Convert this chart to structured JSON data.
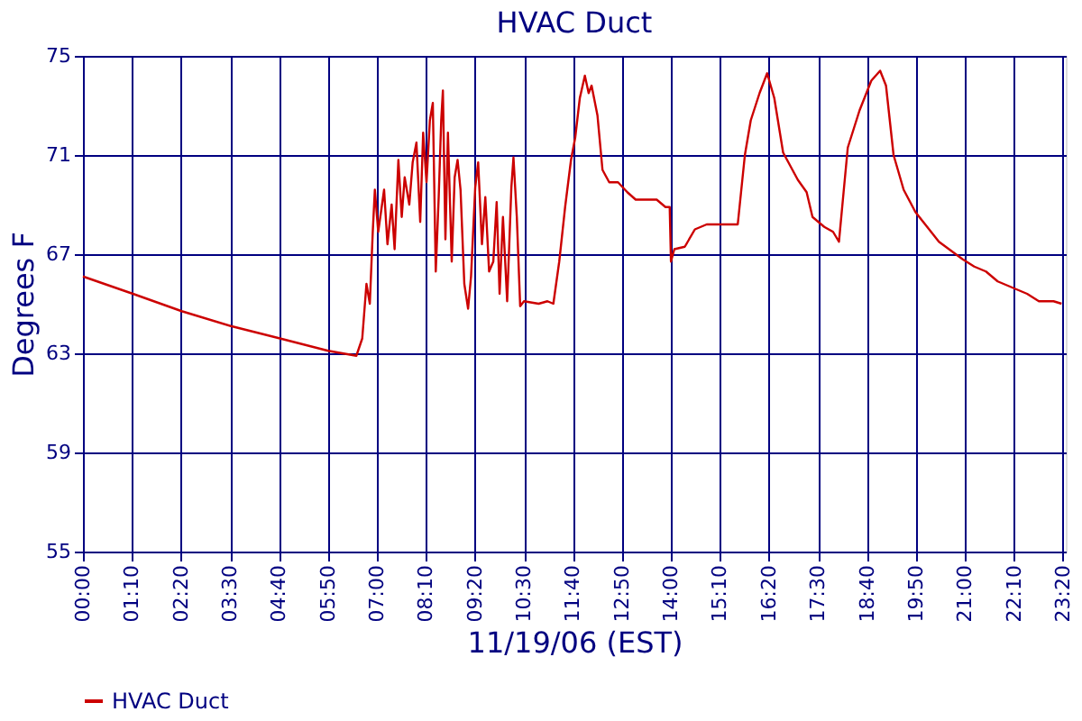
{
  "chart_data": {
    "type": "line",
    "title": "HVAC Duct",
    "xlabel": "11/19/06 (EST)",
    "ylabel": "Degrees F",
    "xlim": [
      0,
      23.4
    ],
    "ylim": [
      55,
      75
    ],
    "yticks": [
      55,
      59,
      63,
      67,
      71,
      75
    ],
    "xticks": [
      {
        "value": 0,
        "label": "00:00"
      },
      {
        "value": 1.16667,
        "label": "01:10"
      },
      {
        "value": 2.33333,
        "label": "02:20"
      },
      {
        "value": 3.5,
        "label": "03:30"
      },
      {
        "value": 4.66667,
        "label": "04:40"
      },
      {
        "value": 5.83333,
        "label": "05:50"
      },
      {
        "value": 7,
        "label": "07:00"
      },
      {
        "value": 8.16667,
        "label": "08:10"
      },
      {
        "value": 9.33333,
        "label": "09:20"
      },
      {
        "value": 10.5,
        "label": "10:30"
      },
      {
        "value": 11.66667,
        "label": "11:40"
      },
      {
        "value": 12.83333,
        "label": "12:50"
      },
      {
        "value": 14,
        "label": "14:00"
      },
      {
        "value": 15.16667,
        "label": "15:10"
      },
      {
        "value": 16.33333,
        "label": "16:20"
      },
      {
        "value": 17.5,
        "label": "17:30"
      },
      {
        "value": 18.66667,
        "label": "18:40"
      },
      {
        "value": 19.83333,
        "label": "19:50"
      },
      {
        "value": 21,
        "label": "21:00"
      },
      {
        "value": 22.16667,
        "label": "22:10"
      },
      {
        "value": 23.33333,
        "label": "23:20"
      }
    ],
    "grid": true,
    "legend": "bottom",
    "line_style": "solid",
    "marker": "none",
    "series": [
      {
        "name": "HVAC Duct",
        "color": "#cc0000",
        "x": [
          0,
          1.19,
          2.35,
          3.52,
          4.69,
          5.84,
          6.51,
          6.65,
          6.75,
          6.83,
          6.9,
          6.95,
          7.03,
          7.17,
          7.25,
          7.35,
          7.42,
          7.51,
          7.59,
          7.66,
          7.77,
          7.85,
          7.94,
          8.03,
          8.1,
          8.18,
          8.26,
          8.33,
          8.4,
          8.47,
          8.53,
          8.57,
          8.63,
          8.69,
          8.78,
          8.85,
          8.92,
          8.99,
          9.08,
          9.17,
          9.24,
          9.34,
          9.41,
          9.5,
          9.58,
          9.67,
          9.77,
          9.85,
          9.92,
          10.0,
          10.1,
          10.2,
          10.25,
          10.33,
          10.41,
          10.5,
          10.85,
          11.06,
          11.2,
          11.34,
          11.48,
          11.62,
          11.72,
          11.83,
          11.95,
          12.04,
          12.11,
          12.25,
          12.37,
          12.53,
          12.74,
          12.96,
          13.16,
          13.66,
          13.87,
          13.97,
          14.0,
          14.08,
          14.33,
          14.57,
          14.85,
          15.59,
          15.76,
          15.9,
          16.11,
          16.29,
          16.46,
          16.67,
          17.02,
          17.23,
          17.37,
          17.65,
          17.86,
          18.0,
          18.11,
          18.21,
          18.49,
          18.77,
          18.98,
          19.12,
          19.3,
          19.54,
          19.82,
          20.1,
          20.38,
          20.94,
          21.22,
          21.5,
          21.78,
          22.06,
          22.48,
          22.76,
          23.11,
          23.3
        ],
        "values": [
          66.1,
          65.4,
          64.7,
          64.1,
          63.6,
          63.1,
          62.9,
          63.6,
          65.8,
          65.0,
          67.9,
          69.6,
          67.9,
          69.6,
          67.4,
          69.0,
          67.2,
          70.8,
          68.5,
          70.1,
          69.0,
          70.7,
          71.5,
          68.3,
          71.9,
          69.9,
          72.4,
          73.1,
          66.3,
          69.3,
          72.4,
          73.6,
          67.6,
          71.9,
          66.7,
          70.1,
          70.8,
          69.6,
          65.8,
          64.8,
          66.1,
          69.7,
          70.7,
          67.4,
          69.3,
          66.3,
          66.7,
          69.1,
          65.4,
          68.5,
          65.1,
          69.7,
          70.9,
          68.5,
          64.9,
          65.1,
          65.0,
          65.1,
          65.0,
          66.7,
          68.9,
          70.8,
          71.7,
          73.3,
          74.2,
          73.5,
          73.8,
          72.6,
          70.4,
          69.9,
          69.9,
          69.5,
          69.2,
          69.2,
          68.9,
          68.9,
          66.7,
          67.2,
          67.3,
          68.0,
          68.2,
          68.2,
          71.0,
          72.4,
          73.5,
          74.3,
          73.3,
          71.1,
          70.0,
          69.5,
          68.5,
          68.1,
          67.9,
          67.5,
          69.5,
          71.3,
          72.8,
          74.0,
          74.4,
          73.8,
          71.0,
          69.6,
          68.7,
          68.1,
          67.5,
          66.8,
          66.5,
          66.3,
          65.9,
          65.7,
          65.4,
          65.1,
          65.1,
          65.0
        ]
      }
    ]
  }
}
